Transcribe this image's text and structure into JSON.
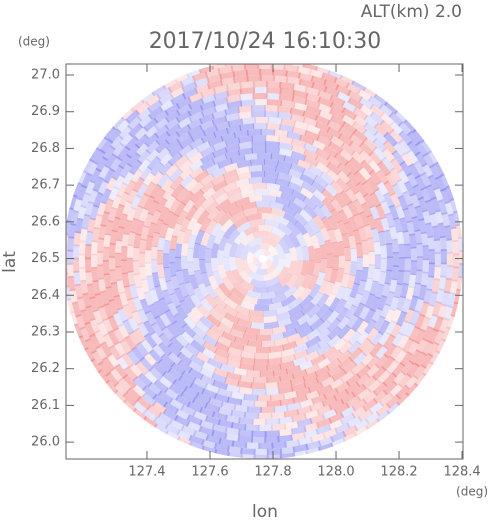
{
  "chart_data": {
    "type": "image",
    "subtitle": "ALT(km)  2.0",
    "title": "2017/10/24 16:10:30",
    "xlabel": "lon",
    "ylabel": "lat",
    "xunit": "(deg)",
    "yunit": "(deg)",
    "xlim": [
      127.143,
      128.403
    ],
    "ylim": [
      25.954,
      27.03
    ],
    "xticks": [
      127.4,
      127.6,
      127.8,
      {
        "value": 128,
        "label": "128.0"
      },
      128.2,
      128.4
    ],
    "yticks": [
      {
        "value": 26,
        "label": "26.0"
      },
      26.1,
      26.2,
      26.3,
      26.4,
      26.5,
      26.6,
      26.7,
      26.8,
      26.9,
      {
        "value": 27,
        "label": "27.0"
      }
    ]
  }
}
